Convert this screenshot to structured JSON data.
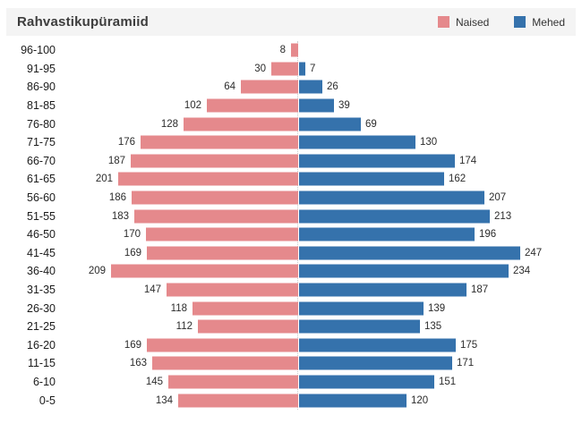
{
  "header": {
    "title": "Rahvastikupüramiid",
    "legend": [
      {
        "label": "Naised",
        "color": "#E5898C"
      },
      {
        "label": "Mehed",
        "color": "#3572AC"
      }
    ]
  },
  "chart_data": {
    "type": "bar",
    "variant": "population-pyramid",
    "title": "Rahvastikupüramiid",
    "xlabel": "",
    "ylabel": "",
    "legend_position": "top-right",
    "grid": "dotted-center-axis-only",
    "axis": {
      "value_max": 250,
      "center_axis": true
    },
    "categories": [
      "96-100",
      "91-95",
      "86-90",
      "81-85",
      "76-80",
      "71-75",
      "66-70",
      "61-65",
      "56-60",
      "51-55",
      "46-50",
      "41-45",
      "36-40",
      "31-35",
      "26-30",
      "21-25",
      "16-20",
      "11-15",
      "6-10",
      "0-5"
    ],
    "series": [
      {
        "name": "Naised",
        "side": "left",
        "color": "#E5898C",
        "values": [
          8,
          30,
          64,
          102,
          128,
          176,
          187,
          201,
          186,
          183,
          170,
          169,
          209,
          147,
          118,
          112,
          169,
          163,
          145,
          134
        ]
      },
      {
        "name": "Mehed",
        "side": "right",
        "color": "#3572AC",
        "values": [
          null,
          7,
          26,
          39,
          69,
          130,
          174,
          162,
          207,
          213,
          196,
          247,
          234,
          187,
          139,
          135,
          175,
          171,
          151,
          120
        ]
      }
    ]
  }
}
